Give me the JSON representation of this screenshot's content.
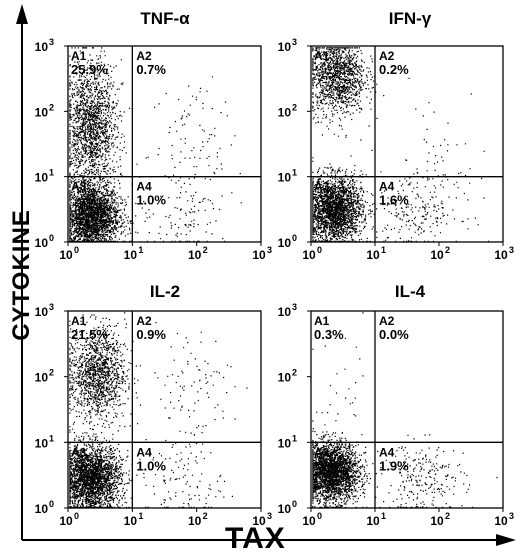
{
  "figure": {
    "x_axis_label": "TAX",
    "y_axis_label": "CYTOKINE"
  },
  "chart_data": [
    {
      "type": "scatter",
      "title": "TNF-α",
      "xscale": "log",
      "yscale": "log",
      "xlim": [
        1,
        1000
      ],
      "ylim": [
        1,
        1000
      ],
      "x_ticks": [
        "10",
        "10",
        "10",
        "10"
      ],
      "x_tick_exps": [
        "0",
        "1",
        "2",
        "3"
      ],
      "y_ticks": [
        "10",
        "10",
        "10",
        "10"
      ],
      "y_tick_exps": [
        "0",
        "1",
        "2",
        "3"
      ],
      "quadrant_gate": {
        "x": 10,
        "y": 10
      },
      "quadrants": [
        {
          "id": "A1",
          "percent": "25.9%"
        },
        {
          "id": "A2",
          "percent": "0.7%"
        },
        {
          "id": "A3",
          "percent": ""
        },
        {
          "id": "A4",
          "percent": "1.0%"
        }
      ]
    },
    {
      "type": "scatter",
      "title": "IFN-γ",
      "xscale": "log",
      "yscale": "log",
      "xlim": [
        1,
        1000
      ],
      "ylim": [
        1,
        1000
      ],
      "x_ticks": [
        "10",
        "10",
        "10",
        "10"
      ],
      "x_tick_exps": [
        "0",
        "1",
        "2",
        "3"
      ],
      "y_ticks": [
        "10",
        "10",
        "10",
        "10"
      ],
      "y_tick_exps": [
        "0",
        "1",
        "2",
        "3"
      ],
      "quadrant_gate": {
        "x": 10,
        "y": 10
      },
      "quadrants": [
        {
          "id": "A1",
          "percent": ""
        },
        {
          "id": "A2",
          "percent": "0.2%"
        },
        {
          "id": "A3",
          "percent": ""
        },
        {
          "id": "A4",
          "percent": "1.6%"
        }
      ]
    },
    {
      "type": "scatter",
      "title": "IL-2",
      "xscale": "log",
      "yscale": "log",
      "xlim": [
        1,
        1000
      ],
      "ylim": [
        1,
        1000
      ],
      "x_ticks": [
        "10",
        "10",
        "10",
        "10"
      ],
      "x_tick_exps": [
        "0",
        "1",
        "2",
        "3"
      ],
      "y_ticks": [
        "10",
        "10",
        "10",
        "10"
      ],
      "y_tick_exps": [
        "0",
        "1",
        "2",
        "3"
      ],
      "quadrant_gate": {
        "x": 10,
        "y": 10
      },
      "quadrants": [
        {
          "id": "A1",
          "percent": "21.5%"
        },
        {
          "id": "A2",
          "percent": "0.9%"
        },
        {
          "id": "A3",
          "percent": ""
        },
        {
          "id": "A4",
          "percent": "1.0%"
        }
      ]
    },
    {
      "type": "scatter",
      "title": "IL-4",
      "xscale": "log",
      "yscale": "log",
      "xlim": [
        1,
        1000
      ],
      "ylim": [
        1,
        1000
      ],
      "x_ticks": [
        "10",
        "10",
        "10",
        "10"
      ],
      "x_tick_exps": [
        "0",
        "1",
        "2",
        "3"
      ],
      "y_ticks": [
        "10",
        "10",
        "10",
        "10"
      ],
      "y_tick_exps": [
        "0",
        "1",
        "2",
        "3"
      ],
      "quadrant_gate": {
        "x": 10,
        "y": 10
      },
      "quadrants": [
        {
          "id": "A1",
          "percent": "0.3%"
        },
        {
          "id": "A2",
          "percent": "0.0%"
        },
        {
          "id": "A3",
          "percent": ""
        },
        {
          "id": "A4",
          "percent": "1.9%"
        }
      ]
    }
  ]
}
